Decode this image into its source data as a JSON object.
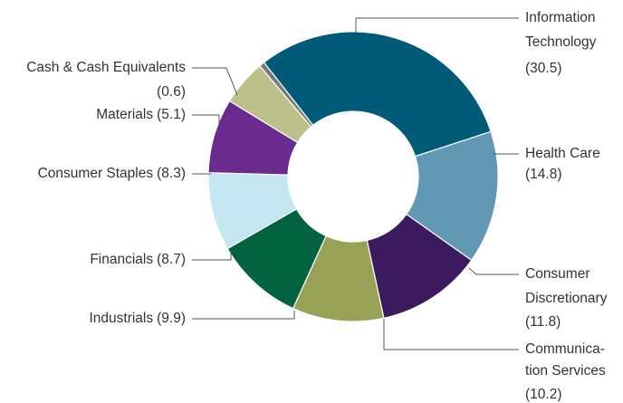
{
  "chart_data": {
    "type": "donut",
    "categories": [
      [
        "Information",
        "Technology"
      ],
      [
        "Health Care"
      ],
      [
        "Consumer",
        "Discretionary"
      ],
      [
        "Communica-",
        "tion Services"
      ],
      [
        "Industrials"
      ],
      [
        "Financials"
      ],
      [
        "Consumer Staples"
      ],
      [
        "Materials"
      ],
      [
        "Cash & Cash Equivalents"
      ]
    ],
    "values": [
      30.5,
      14.8,
      11.8,
      10.2,
      9.9,
      8.7,
      8.3,
      5.1,
      0.6
    ],
    "value_labels": [
      "(30.5)",
      "(14.8)",
      "(11.8)",
      "(10.2)",
      "(9.9)",
      "(8.7)",
      "(8.3)",
      "(5.1)",
      "(0.6)"
    ],
    "colors": [
      "#005a78",
      "#6199b5",
      "#3b1a5e",
      "#98a257",
      "#036240",
      "#c4e6f0",
      "#6a2a8e",
      "#bcc18b",
      "#7a7a7a"
    ]
  }
}
